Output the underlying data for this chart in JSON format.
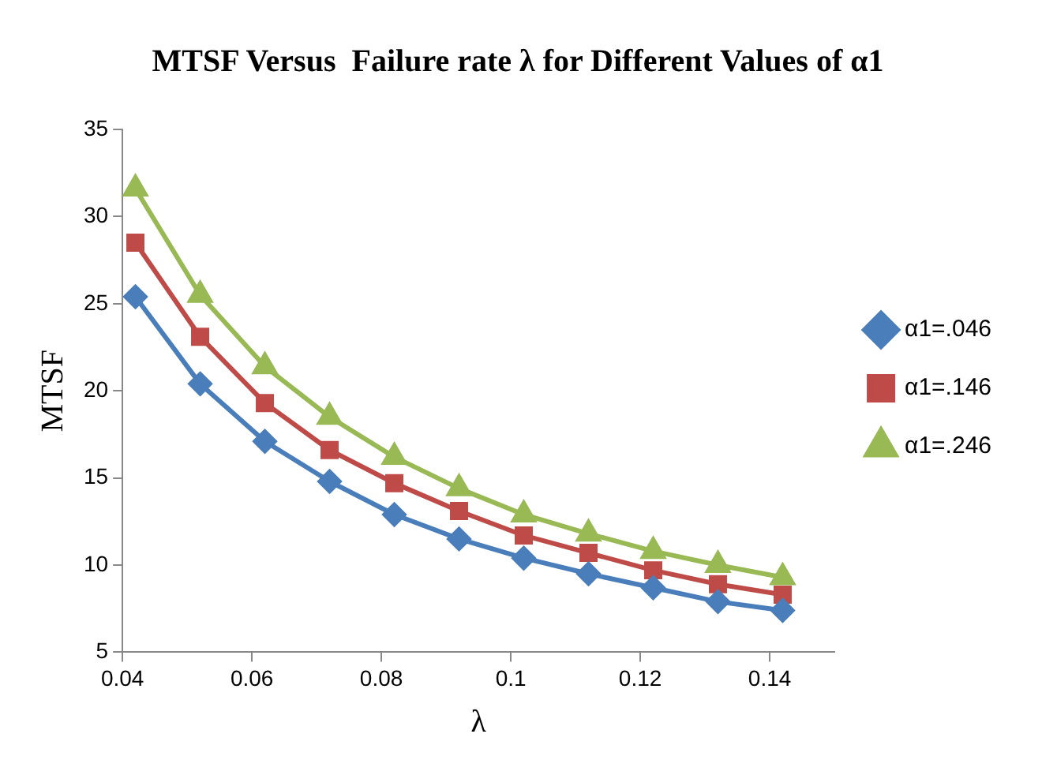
{
  "chart_data": {
    "type": "line",
    "title": "MTSF Versus  Failure rate λ for Different Values of α1",
    "xlabel": "λ",
    "ylabel": "MTSF",
    "x": [
      0.042,
      0.052,
      0.062,
      0.072,
      0.082,
      0.092,
      0.102,
      0.112,
      0.122,
      0.132,
      0.142
    ],
    "series": [
      {
        "name": "α1=.046",
        "color": "#4a7ebb",
        "marker": "diamond",
        "values": [
          25.4,
          20.4,
          17.1,
          14.8,
          12.9,
          11.5,
          10.4,
          9.5,
          8.7,
          7.9,
          7.4
        ]
      },
      {
        "name": "α1=.146",
        "color": "#be4b48",
        "marker": "square",
        "values": [
          28.5,
          23.1,
          19.3,
          16.6,
          14.7,
          13.1,
          11.7,
          10.7,
          9.7,
          8.9,
          8.3
        ]
      },
      {
        "name": "α1=.246",
        "color": "#98b954",
        "marker": "triangle",
        "values": [
          31.6,
          25.5,
          21.4,
          18.5,
          16.2,
          14.4,
          12.9,
          11.8,
          10.8,
          10.0,
          9.3
        ]
      }
    ],
    "xlim": [
      0.04,
      0.15
    ],
    "xticks": [
      0.04,
      0.06,
      0.08,
      0.1,
      0.12,
      0.14
    ],
    "ylim": [
      5,
      35
    ],
    "yticks": [
      5,
      10,
      15,
      20,
      25,
      30,
      35
    ],
    "grid": false,
    "legend": "right"
  }
}
